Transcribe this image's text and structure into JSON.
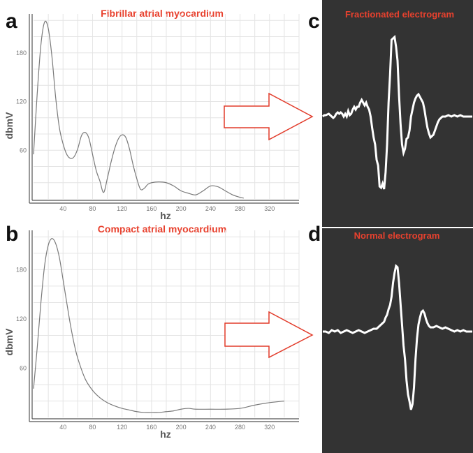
{
  "colors": {
    "title_red": "#e8412e",
    "trace": "#7a7a7a",
    "grid": "#e4e4e4",
    "egm_bg": "#333333",
    "egm_trace": "#ffffff",
    "arrow": "#e23b2a"
  },
  "panels": {
    "a": "a",
    "b": "b",
    "c": "c",
    "d": "d"
  },
  "chart_data": [
    {
      "type": "line",
      "panel": "a",
      "title": "Fibrillar   atrial myocardium",
      "xlabel": "hz",
      "ylabel": "dbmV",
      "xticks": [
        40,
        80,
        120,
        160,
        200,
        240,
        280,
        320
      ],
      "yticks": [
        60,
        120,
        180
      ],
      "xlim": [
        0,
        360
      ],
      "ylim": [
        0,
        228
      ],
      "grid": true,
      "x": [
        0,
        5,
        10,
        15,
        20,
        25,
        30,
        35,
        40,
        45,
        50,
        55,
        60,
        65,
        70,
        75,
        80,
        85,
        90,
        95,
        100,
        105,
        110,
        115,
        120,
        125,
        130,
        135,
        140,
        145,
        150,
        155,
        160,
        170,
        180,
        190,
        200,
        210,
        220,
        230,
        240,
        250,
        260,
        270,
        280,
        285
      ],
      "y": [
        55,
        130,
        190,
        218,
        210,
        175,
        125,
        88,
        68,
        55,
        50,
        52,
        62,
        78,
        82,
        75,
        55,
        35,
        22,
        8,
        25,
        45,
        62,
        74,
        79,
        76,
        62,
        42,
        25,
        12,
        13,
        18,
        20,
        21,
        20,
        16,
        10,
        7,
        5,
        10,
        16,
        15,
        10,
        5,
        2,
        1
      ]
    },
    {
      "type": "line",
      "panel": "b",
      "title": "Compact atrial myocardium",
      "xlabel": "hz",
      "ylabel": "dbmV",
      "xticks": [
        40,
        80,
        120,
        160,
        200,
        240,
        280,
        320
      ],
      "yticks": [
        60,
        120,
        180
      ],
      "xlim": [
        0,
        360
      ],
      "ylim": [
        0,
        228
      ],
      "grid": true,
      "x": [
        0,
        5,
        10,
        15,
        20,
        25,
        30,
        35,
        40,
        45,
        50,
        55,
        60,
        70,
        80,
        90,
        100,
        110,
        120,
        130,
        140,
        150,
        160,
        170,
        180,
        190,
        200,
        210,
        220,
        240,
        260,
        280,
        300,
        320,
        340
      ],
      "y": [
        35,
        85,
        140,
        185,
        210,
        218,
        212,
        195,
        168,
        140,
        113,
        90,
        72,
        47,
        33,
        24,
        18,
        14,
        11,
        9,
        7,
        6,
        6,
        6,
        7,
        8,
        10,
        11,
        10,
        10,
        10,
        11,
        15,
        18,
        20
      ]
    }
  ],
  "electrograms": [
    {
      "panel": "c",
      "title": "Fractionated electrogram",
      "trace": [
        [
          0,
          0
        ],
        [
          2,
          2
        ],
        [
          4,
          2
        ],
        [
          8,
          4
        ],
        [
          10,
          2
        ],
        [
          12,
          0
        ],
        [
          14,
          -2
        ],
        [
          16,
          0
        ],
        [
          18,
          4
        ],
        [
          20,
          6
        ],
        [
          22,
          4
        ],
        [
          24,
          6
        ],
        [
          26,
          4
        ],
        [
          28,
          0
        ],
        [
          30,
          4
        ],
        [
          32,
          0
        ],
        [
          34,
          8
        ],
        [
          36,
          2
        ],
        [
          38,
          4
        ],
        [
          40,
          10
        ],
        [
          42,
          14
        ],
        [
          44,
          10
        ],
        [
          46,
          14
        ],
        [
          48,
          14
        ],
        [
          50,
          20
        ],
        [
          52,
          24
        ],
        [
          54,
          20
        ],
        [
          56,
          16
        ],
        [
          58,
          20
        ],
        [
          60,
          14
        ],
        [
          62,
          10
        ],
        [
          64,
          0
        ],
        [
          66,
          -16
        ],
        [
          68,
          -30
        ],
        [
          70,
          -40
        ],
        [
          72,
          -62
        ],
        [
          74,
          -70
        ],
        [
          76,
          -100
        ],
        [
          78,
          -102
        ],
        [
          80,
          -96
        ],
        [
          82,
          -104
        ],
        [
          84,
          -80
        ],
        [
          86,
          -40
        ],
        [
          88,
          20
        ],
        [
          90,
          60
        ],
        [
          92,
          110
        ],
        [
          94,
          112
        ],
        [
          96,
          114
        ],
        [
          98,
          100
        ],
        [
          100,
          80
        ],
        [
          102,
          30
        ],
        [
          104,
          -10
        ],
        [
          106,
          -40
        ],
        [
          108,
          -52
        ],
        [
          110,
          -46
        ],
        [
          112,
          -32
        ],
        [
          114,
          -30
        ],
        [
          116,
          -20
        ],
        [
          118,
          0
        ],
        [
          120,
          10
        ],
        [
          122,
          20
        ],
        [
          124,
          26
        ],
        [
          126,
          30
        ],
        [
          128,
          32
        ],
        [
          130,
          28
        ],
        [
          132,
          24
        ],
        [
          134,
          20
        ],
        [
          136,
          10
        ],
        [
          138,
          -4
        ],
        [
          140,
          -16
        ],
        [
          142,
          -24
        ],
        [
          144,
          -30
        ],
        [
          146,
          -28
        ],
        [
          148,
          -26
        ],
        [
          150,
          -20
        ],
        [
          152,
          -14
        ],
        [
          154,
          -8
        ],
        [
          156,
          -4
        ],
        [
          158,
          -2
        ],
        [
          160,
          0
        ],
        [
          164,
          0
        ],
        [
          168,
          2
        ],
        [
          172,
          0
        ],
        [
          176,
          2
        ],
        [
          180,
          0
        ],
        [
          184,
          2
        ],
        [
          188,
          0
        ],
        [
          192,
          0
        ],
        [
          196,
          0
        ],
        [
          200,
          0
        ]
      ]
    },
    {
      "panel": "d",
      "title": "Normal electrogram",
      "trace": [
        [
          0,
          0
        ],
        [
          4,
          0
        ],
        [
          8,
          -2
        ],
        [
          12,
          2
        ],
        [
          16,
          0
        ],
        [
          20,
          2
        ],
        [
          24,
          -2
        ],
        [
          28,
          0
        ],
        [
          32,
          2
        ],
        [
          36,
          0
        ],
        [
          40,
          -2
        ],
        [
          44,
          0
        ],
        [
          48,
          2
        ],
        [
          52,
          0
        ],
        [
          56,
          -2
        ],
        [
          60,
          0
        ],
        [
          64,
          2
        ],
        [
          68,
          4
        ],
        [
          72,
          4
        ],
        [
          76,
          8
        ],
        [
          80,
          12
        ],
        [
          82,
          14
        ],
        [
          84,
          20
        ],
        [
          86,
          24
        ],
        [
          88,
          32
        ],
        [
          90,
          38
        ],
        [
          92,
          50
        ],
        [
          94,
          70
        ],
        [
          96,
          84
        ],
        [
          98,
          94
        ],
        [
          100,
          92
        ],
        [
          102,
          70
        ],
        [
          104,
          40
        ],
        [
          106,
          10
        ],
        [
          108,
          -20
        ],
        [
          110,
          -40
        ],
        [
          112,
          -70
        ],
        [
          114,
          -90
        ],
        [
          116,
          -100
        ],
        [
          118,
          -112
        ],
        [
          120,
          -104
        ],
        [
          122,
          -80
        ],
        [
          124,
          -40
        ],
        [
          126,
          -10
        ],
        [
          128,
          10
        ],
        [
          130,
          20
        ],
        [
          132,
          28
        ],
        [
          134,
          30
        ],
        [
          136,
          26
        ],
        [
          138,
          18
        ],
        [
          140,
          12
        ],
        [
          142,
          8
        ],
        [
          144,
          6
        ],
        [
          146,
          6
        ],
        [
          148,
          6
        ],
        [
          152,
          8
        ],
        [
          156,
          6
        ],
        [
          160,
          4
        ],
        [
          164,
          6
        ],
        [
          168,
          4
        ],
        [
          172,
          2
        ],
        [
          176,
          0
        ],
        [
          180,
          2
        ],
        [
          184,
          0
        ],
        [
          188,
          2
        ],
        [
          192,
          0
        ],
        [
          196,
          0
        ],
        [
          200,
          0
        ]
      ]
    }
  ]
}
